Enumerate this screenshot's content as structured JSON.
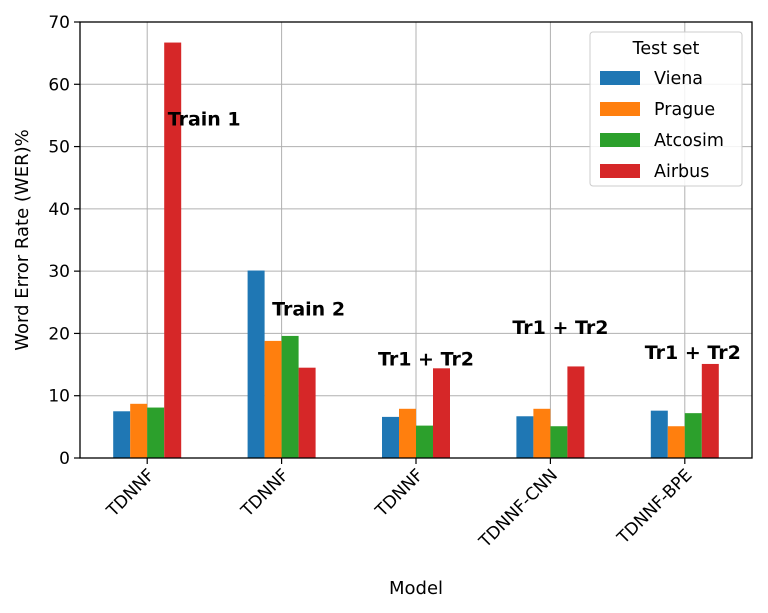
{
  "chart_data": {
    "type": "bar",
    "categories": [
      "TDNNF",
      "TDNNF",
      "TDNNF",
      "TDNNF-CNN",
      "TDNNF-BPE"
    ],
    "series": [
      {
        "name": "Viena",
        "color": "#1f77b4",
        "values": [
          7.5,
          30.1,
          6.6,
          6.7,
          7.6
        ]
      },
      {
        "name": "Prague",
        "color": "#ff7f0e",
        "values": [
          8.7,
          18.8,
          7.9,
          7.9,
          5.1
        ]
      },
      {
        "name": "Atcosim",
        "color": "#2ca02c",
        "values": [
          8.1,
          19.6,
          5.2,
          5.1,
          7.2
        ]
      },
      {
        "name": "Airbus",
        "color": "#d62728",
        "values": [
          66.7,
          14.5,
          14.4,
          14.7,
          15.1
        ]
      }
    ],
    "annotations": [
      {
        "text": "Train 1",
        "category_index": 0,
        "y": 54.5
      },
      {
        "text": "Train 2",
        "category_index": 1,
        "y": 24.0
      },
      {
        "text": "Tr1 + Tr2",
        "category_index": 2,
        "y": 16.0
      },
      {
        "text": "Tr1 + Tr2",
        "category_index": 3,
        "y": 21.0
      },
      {
        "text": "Tr1 + Tr2",
        "category_index": 4,
        "y": 17.0
      }
    ],
    "xlabel": "Model",
    "ylabel": "Word Error Rate (WER)%",
    "ylim": [
      0,
      70
    ],
    "yticks": [
      0,
      10,
      20,
      30,
      40,
      50,
      60,
      70
    ],
    "grid": true,
    "legend": {
      "title": "Test set",
      "position": "upper right"
    }
  }
}
